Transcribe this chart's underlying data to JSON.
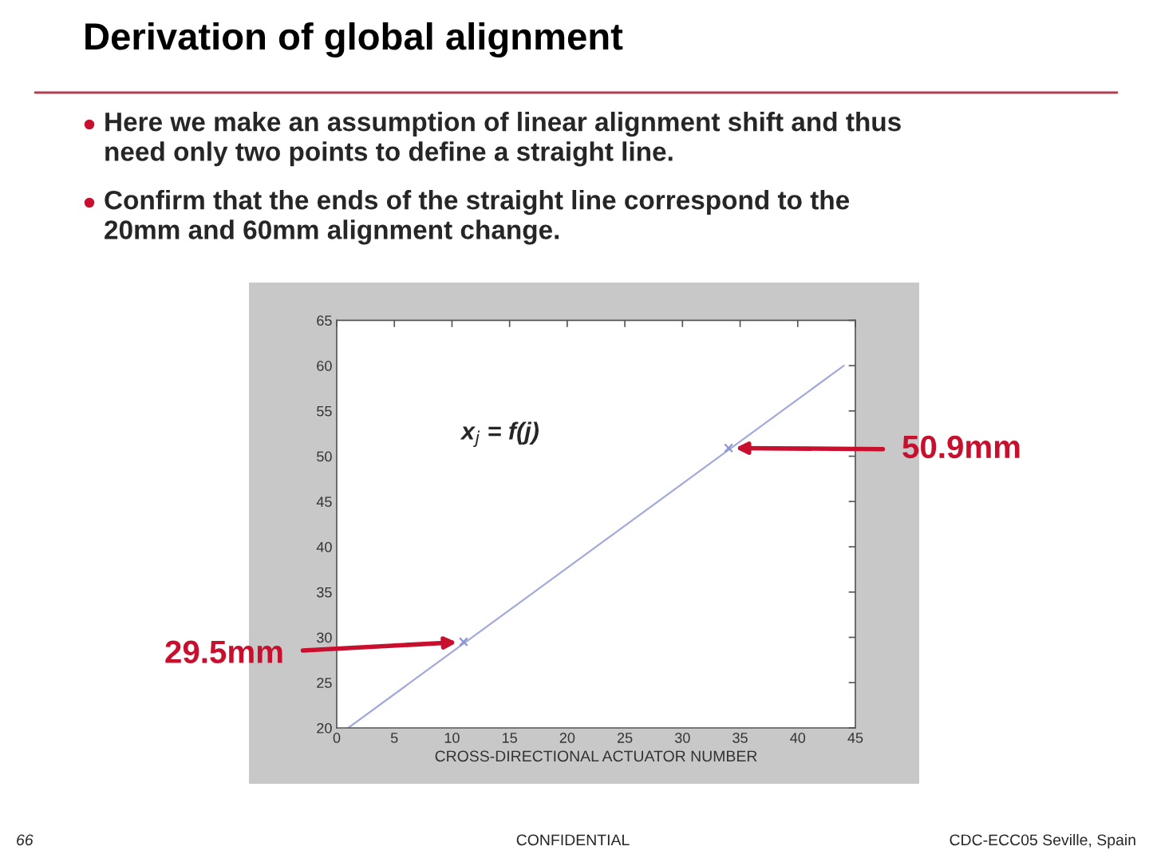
{
  "chart_data": {
    "type": "line",
    "title": "Derivation of global alignment",
    "xlabel": "CROSS-DIRECTIONAL ACTUATOR NUMBER",
    "series": [
      {
        "color": "#a4aadc",
        "x": [
          1,
          44
        ],
        "values": [
          20,
          60
        ]
      },
      {
        "type": "scatter",
        "color": "#8c94d4",
        "marker": "cross",
        "x": [
          11,
          34
        ],
        "values": [
          29.5,
          50.9
        ]
      }
    ],
    "xlim": [
      0,
      45
    ],
    "xticks": [
      0,
      5,
      10,
      15,
      20,
      25,
      30,
      35,
      40,
      45
    ],
    "ylim": [
      20,
      65
    ],
    "yticks": [
      20,
      25,
      30,
      35,
      40,
      45,
      50,
      55,
      60,
      65
    ],
    "grid": false,
    "annotations": [
      "Here we make an assumption of linear alignment shift and thus\nneed only two points to define a straight line.",
      "Confirm that the ends of the straight line correspond to the\n20mm and 60mm alignment change.",
      "x$_{j}$ = f(j)",
      {
        "text": "50.9mm",
        "x": 34,
        "y": 50.9
      },
      {
        "text": "29.5mm",
        "x": 11,
        "y": 29.5
      },
      "66",
      "CONFIDENTIAL",
      "CDC-ECC05 Seville, Spain"
    ]
  }
}
